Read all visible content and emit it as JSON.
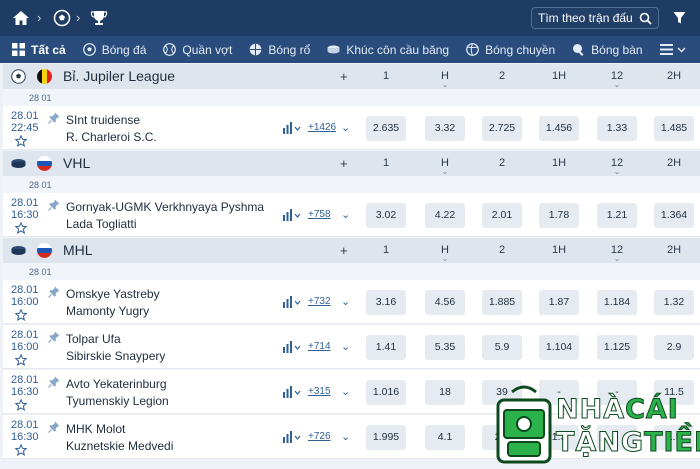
{
  "search": {
    "placeholder": "Tìm theo trận đấu"
  },
  "tabs": [
    {
      "label": "Tất cả",
      "icon": "grid-icon"
    },
    {
      "label": "Bóng đá",
      "icon": "soccer-ball-icon"
    },
    {
      "label": "Quần vợt",
      "icon": "tennis-ball-icon"
    },
    {
      "label": "Bóng rổ",
      "icon": "basketball-icon"
    },
    {
      "label": "Khúc côn cầu băng",
      "icon": "hockey-puck-icon"
    },
    {
      "label": "Bóng chuyền",
      "icon": "volleyball-icon"
    },
    {
      "label": "Bóng bàn",
      "icon": "table-tennis-icon"
    }
  ],
  "market_headers": [
    "1",
    "H",
    "2",
    "1H",
    "12",
    "2H"
  ],
  "leagues": [
    {
      "name": "Bỉ. Jupiler League",
      "sport_icon": "soccer-ball-icon",
      "flag": "belgium-flag-icon",
      "date": "28 01",
      "matches": [
        {
          "date": "28.01",
          "time": "22:45",
          "team1": "SInt truidense",
          "team2": "R. Charleroi S.C.",
          "more": "+1426",
          "odds": [
            "2.635",
            "3.32",
            "2.725",
            "1.456",
            "1.33",
            "1.485"
          ]
        }
      ]
    },
    {
      "name": "VHL",
      "sport_icon": "hockey-puck-icon",
      "flag": "russia-flag-icon",
      "date": "28 01",
      "matches": [
        {
          "date": "28.01",
          "time": "16:30",
          "team1": "Gornyak-UGMK Verkhnyaya Pyshma",
          "team2": "Lada Togliatti",
          "more": "+758",
          "odds": [
            "3.02",
            "4.22",
            "2.01",
            "1.78",
            "1.21",
            "1.364"
          ]
        }
      ]
    },
    {
      "name": "MHL",
      "sport_icon": "hockey-puck-icon",
      "flag": "russia-flag-icon",
      "date": "28 01",
      "matches": [
        {
          "date": "28.01",
          "time": "16:00",
          "team1": "Omskye Yastreby",
          "team2": "Mamonty Yugry",
          "more": "+732",
          "odds": [
            "3.16",
            "4.56",
            "1.885",
            "1.87",
            "1.184",
            "1.32"
          ]
        },
        {
          "date": "28.01",
          "time": "16:00",
          "team1": "Tolpar Ufa",
          "team2": "Sibirskie Snaypery",
          "more": "+714",
          "odds": [
            "1.41",
            "5.35",
            "5.9",
            "1.104",
            "1.125",
            "2.9"
          ]
        },
        {
          "date": "28.01",
          "time": "16:30",
          "team1": "Avto Yekaterinburg",
          "team2": "Tyumenskiy Legion",
          "more": "+315",
          "odds": [
            "1.016",
            "18",
            "39",
            "-",
            "-",
            "11.5"
          ]
        },
        {
          "date": "28.01",
          "time": "16:30",
          "team1": "MHK Molot",
          "team2": "Kuznetskie Medvedi",
          "more": "+726",
          "odds": [
            "1.995",
            "4.1",
            "2.1",
            "1.3",
            "",
            "1.5"
          ]
        }
      ]
    }
  ],
  "watermark": {
    "line1_a": "NHÀ",
    "line1_b": "CÁI",
    "line2_a": "TẶNG",
    "line2_b": "TIỀN"
  },
  "colors": {
    "topbar": "#1f3c65",
    "tabs": "#2a4c7d",
    "league_header": "#dfe5ed",
    "odds_cell": "#e6ebf1",
    "brand_green": "#2bb24a"
  }
}
